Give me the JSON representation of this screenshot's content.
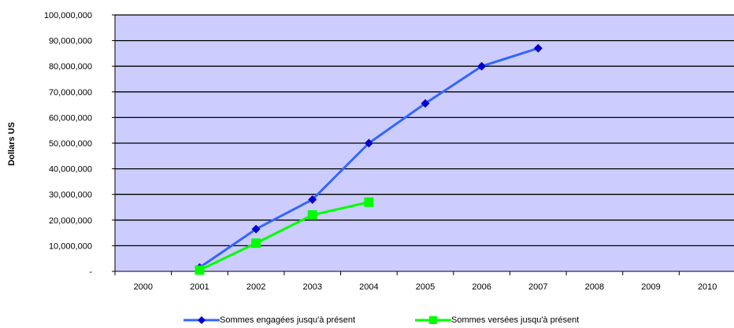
{
  "chart_data": {
    "type": "line",
    "title": "",
    "xlabel": "",
    "ylabel": "Dollars US",
    "categories": [
      "2000",
      "2001",
      "2002",
      "2003",
      "2004",
      "2005",
      "2006",
      "2007",
      "2008",
      "2009",
      "2010"
    ],
    "ylim": [
      0,
      100000000
    ],
    "yticks": [
      0,
      10000000,
      20000000,
      30000000,
      40000000,
      50000000,
      60000000,
      70000000,
      80000000,
      90000000,
      100000000
    ],
    "ytick_labels": [
      "-",
      "10,000,000",
      "20,000,000",
      "30,000,000",
      "40,000,000",
      "50,000,000",
      "60,000,000",
      "70,000,000",
      "80,000,000",
      "90,000,000",
      "100,000,000"
    ],
    "grid": true,
    "plot_background": "#ccccff",
    "legend_position": "bottom",
    "series": [
      {
        "name": "Sommes engagées jusqu'à présent",
        "color": "#3366ff",
        "marker_color": "#0000cc",
        "marker": "diamond",
        "values": [
          null,
          1500000,
          16500000,
          28000000,
          50000000,
          65500000,
          80000000,
          87000000,
          null,
          null,
          null
        ]
      },
      {
        "name": "Sommes versées jusqu'à présent",
        "color": "#00ff00",
        "marker_color": "#00ff00",
        "marker": "square",
        "values": [
          null,
          500000,
          11000000,
          22000000,
          27000000,
          null,
          null,
          null,
          null,
          null,
          null
        ]
      }
    ]
  }
}
